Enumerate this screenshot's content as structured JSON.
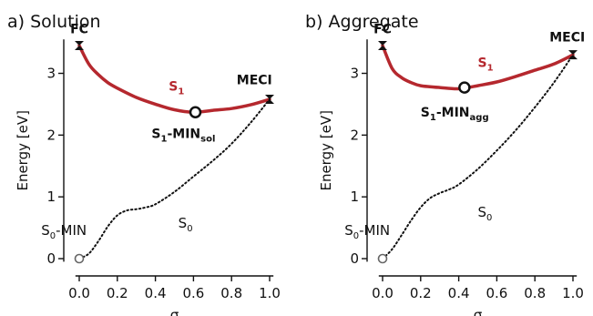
{
  "chart_data": [
    {
      "type": "line",
      "panel_label": "a)",
      "title": "Solution",
      "xlabel": "σ",
      "ylabel": "Energy [eV]",
      "xlim": [
        -0.05,
        1.05
      ],
      "ylim": [
        -0.1,
        3.7
      ],
      "x_ticks": [
        "0.0",
        "0.2",
        "0.4",
        "0.6",
        "0.8",
        "1.0"
      ],
      "y_ticks": [
        "0",
        "1",
        "2",
        "3"
      ],
      "series": [
        {
          "name": "S1",
          "label_main": "S",
          "label_sub": "1",
          "label_at": [
            0.47,
            2.72
          ],
          "x": [
            0.0,
            0.05,
            0.1,
            0.15,
            0.2,
            0.3,
            0.4,
            0.5,
            0.6,
            0.7,
            0.8,
            0.9,
            1.0
          ],
          "y": [
            3.45,
            3.15,
            2.98,
            2.85,
            2.76,
            2.61,
            2.5,
            2.41,
            2.37,
            2.4,
            2.43,
            2.49,
            2.58
          ]
        },
        {
          "name": "S0",
          "label_main": "S",
          "label_sub": "0",
          "label_at": [
            0.52,
            0.5
          ],
          "x": [
            0.0,
            0.05,
            0.1,
            0.15,
            0.2,
            0.25,
            0.3,
            0.35,
            0.4,
            0.5,
            0.6,
            0.7,
            0.8,
            0.9,
            1.0
          ],
          "y": [
            0.0,
            0.08,
            0.28,
            0.52,
            0.7,
            0.78,
            0.8,
            0.83,
            0.88,
            1.08,
            1.33,
            1.58,
            1.86,
            2.2,
            2.58
          ]
        }
      ],
      "points": [
        {
          "label": "FC",
          "x": 0.0,
          "y": 3.45,
          "marker": "x",
          "label_at": [
            0.0,
            3.65
          ]
        },
        {
          "label": "MECI",
          "x": 1.0,
          "y": 2.58,
          "marker": "x",
          "label_at": [
            0.92,
            2.82
          ]
        },
        {
          "label_main": "S",
          "label_sub": "1",
          "label_rest": "-MIN",
          "label_sub2": "sol",
          "x": 0.61,
          "y": 2.37,
          "marker": "circle",
          "label_at": [
            0.38,
            1.95
          ]
        },
        {
          "label_main": "S",
          "label_sub": "0",
          "label_rest": "-MIN",
          "x": 0.0,
          "y": 0.0,
          "marker": "circle",
          "label_at": [
            -0.2,
            0.38
          ]
        }
      ]
    },
    {
      "type": "line",
      "panel_label": "b)",
      "title": "Aggregate",
      "xlabel": "σ",
      "ylabel": "Energy [eV]",
      "xlim": [
        -0.05,
        1.05
      ],
      "ylim": [
        -0.1,
        3.7
      ],
      "x_ticks": [
        "0.0",
        "0.2",
        "0.4",
        "0.6",
        "0.8",
        "1.0"
      ],
      "y_ticks": [
        "0",
        "1",
        "2",
        "3"
      ],
      "series": [
        {
          "name": "S1",
          "label_main": "S",
          "label_sub": "1",
          "label_at": [
            0.5,
            3.1
          ],
          "x": [
            0.0,
            0.05,
            0.1,
            0.15,
            0.2,
            0.3,
            0.4,
            0.5,
            0.6,
            0.7,
            0.8,
            0.9,
            1.0
          ],
          "y": [
            3.45,
            3.08,
            2.93,
            2.85,
            2.8,
            2.77,
            2.75,
            2.8,
            2.86,
            2.95,
            3.05,
            3.15,
            3.3
          ]
        },
        {
          "name": "S0",
          "label_main": "S",
          "label_sub": "0",
          "label_at": [
            0.5,
            0.68
          ],
          "x": [
            0.0,
            0.05,
            0.1,
            0.15,
            0.2,
            0.25,
            0.3,
            0.35,
            0.4,
            0.5,
            0.6,
            0.7,
            0.8,
            0.9,
            1.0
          ],
          "y": [
            0.0,
            0.15,
            0.38,
            0.62,
            0.83,
            0.98,
            1.06,
            1.12,
            1.2,
            1.45,
            1.75,
            2.08,
            2.45,
            2.85,
            3.3
          ]
        }
      ],
      "points": [
        {
          "label": "FC",
          "x": 0.0,
          "y": 3.45,
          "marker": "x",
          "label_at": [
            0.0,
            3.65
          ]
        },
        {
          "label": "MECI",
          "x": 1.0,
          "y": 3.3,
          "marker": "x",
          "label_at": [
            0.97,
            3.52
          ]
        },
        {
          "label_main": "S",
          "label_sub": "1",
          "label_rest": "-MIN",
          "label_sub2": "agg",
          "x": 0.43,
          "y": 2.77,
          "marker": "circle",
          "label_at": [
            0.2,
            2.3
          ]
        },
        {
          "label_main": "S",
          "label_sub": "0",
          "label_rest": "-MIN",
          "x": 0.0,
          "y": 0.0,
          "marker": "circle",
          "label_at": [
            -0.2,
            0.38
          ]
        }
      ]
    }
  ]
}
